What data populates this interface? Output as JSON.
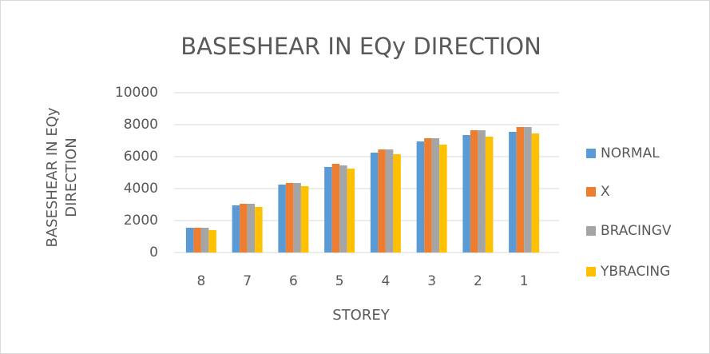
{
  "chart_data": {
    "type": "bar",
    "title": "BASESHEAR IN EQy DIRECTION",
    "x_label": "STOREY",
    "y_label": "BASESHEAR IN EQy DIRECTION",
    "categories": [
      "8",
      "7",
      "6",
      "5",
      "4",
      "3",
      "2",
      "1"
    ],
    "series": [
      {
        "name": "NORMAL",
        "color": "#5b9bd5",
        "values": [
          1550,
          2950,
          4250,
          5350,
          6250,
          6950,
          7350,
          7550
        ]
      },
      {
        "name": "X",
        "color": "#ed7d31",
        "values": [
          1550,
          3050,
          4350,
          5550,
          6450,
          7150,
          7650,
          7850
        ]
      },
      {
        "name": "BRACINGV",
        "color": "#a5a5a5",
        "values": [
          1550,
          3050,
          4350,
          5450,
          6450,
          7150,
          7650,
          7850
        ]
      },
      {
        "name": "YBRACING",
        "color": "#ffc000",
        "values": [
          1400,
          2850,
          4150,
          5250,
          6150,
          6750,
          7250,
          7450
        ]
      }
    ],
    "ylim": [
      0,
      10000
    ],
    "yticks": [
      0,
      2000,
      4000,
      6000,
      8000,
      10000
    ],
    "grid": true,
    "legend": "right"
  }
}
